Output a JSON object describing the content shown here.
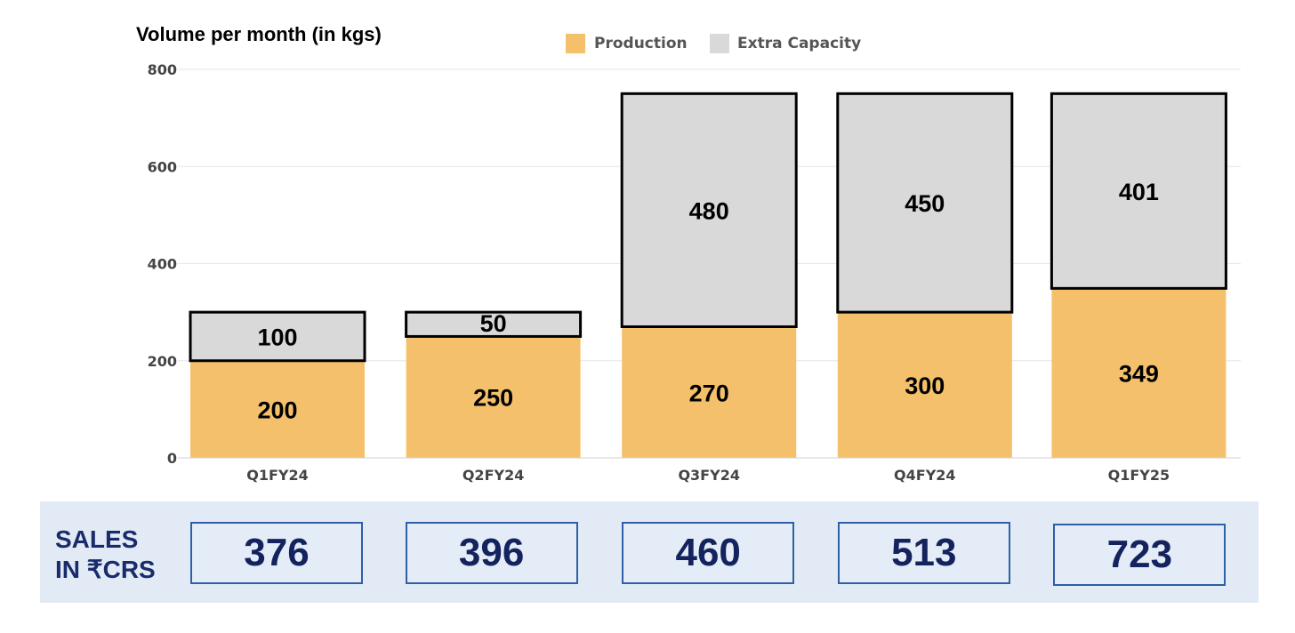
{
  "chart_data": {
    "type": "bar",
    "stacked": true,
    "title": "Volume per month (in kgs)",
    "categories": [
      "Q1FY24",
      "Q2FY24",
      "Q3FY24",
      "Q4FY24",
      "Q1FY25"
    ],
    "series": [
      {
        "name": "Production",
        "values": [
          200,
          250,
          270,
          300,
          349
        ],
        "color": "#f5c06b"
      },
      {
        "name": "Extra Capacity",
        "values": [
          100,
          50,
          480,
          450,
          401
        ],
        "color": "#d9d9d9"
      }
    ],
    "ylim": [
      0,
      800
    ],
    "yticks": [
      0,
      200,
      400,
      600,
      800
    ],
    "grid": true,
    "legend_position": "top-center",
    "extra_capacity_outline_color": "#000000"
  },
  "sales": {
    "caption_line1": "SALES",
    "caption_line2": "IN ₹CRS",
    "values": [
      "376",
      "396",
      "460",
      "513",
      "723"
    ]
  }
}
